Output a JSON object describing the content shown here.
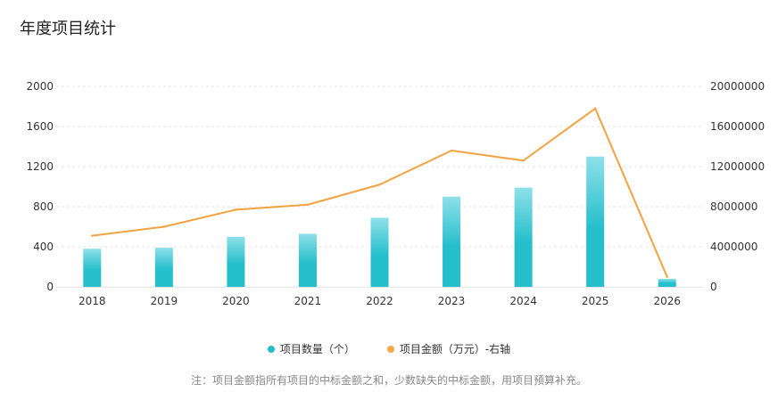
{
  "header": {
    "title": "年度项目统计"
  },
  "note": "注：项目金额指所有项目的中标金额之和，少数缺失的中标金额，用项目预算补充。",
  "colors": {
    "bar_top": "#8ee0ea",
    "bar_bottom": "#25bfcc",
    "line": "#f2a23f",
    "grid": "#e6e6e6",
    "legend_bar": "#25bfcc",
    "legend_line": "#f7a64a"
  },
  "chart_data": {
    "type": "bar",
    "categories": [
      "2018",
      "2019",
      "2020",
      "2021",
      "2022",
      "2023",
      "2024",
      "2025",
      "2026"
    ],
    "series": [
      {
        "name": "项目数量（个）",
        "type": "bar",
        "axis": "left",
        "values": [
          380,
          390,
          500,
          530,
          690,
          900,
          990,
          1300,
          80
        ]
      },
      {
        "name": "项目金额（万元）-右轴",
        "type": "line",
        "axis": "right",
        "values": [
          5100000,
          6000000,
          7700000,
          8200000,
          10200000,
          13600000,
          12600000,
          17800000,
          1000000
        ]
      }
    ],
    "y_left": {
      "min": 0,
      "max": 2000,
      "ticks": [
        "0",
        "400",
        "800",
        "1200",
        "1600",
        "2000"
      ]
    },
    "y_right": {
      "min": 0,
      "max": 20000000,
      "ticks": [
        "0",
        "4000000",
        "8000000",
        "12000000",
        "16000000",
        "20000000"
      ]
    },
    "grid": true,
    "legend_position": "bottom-center"
  }
}
